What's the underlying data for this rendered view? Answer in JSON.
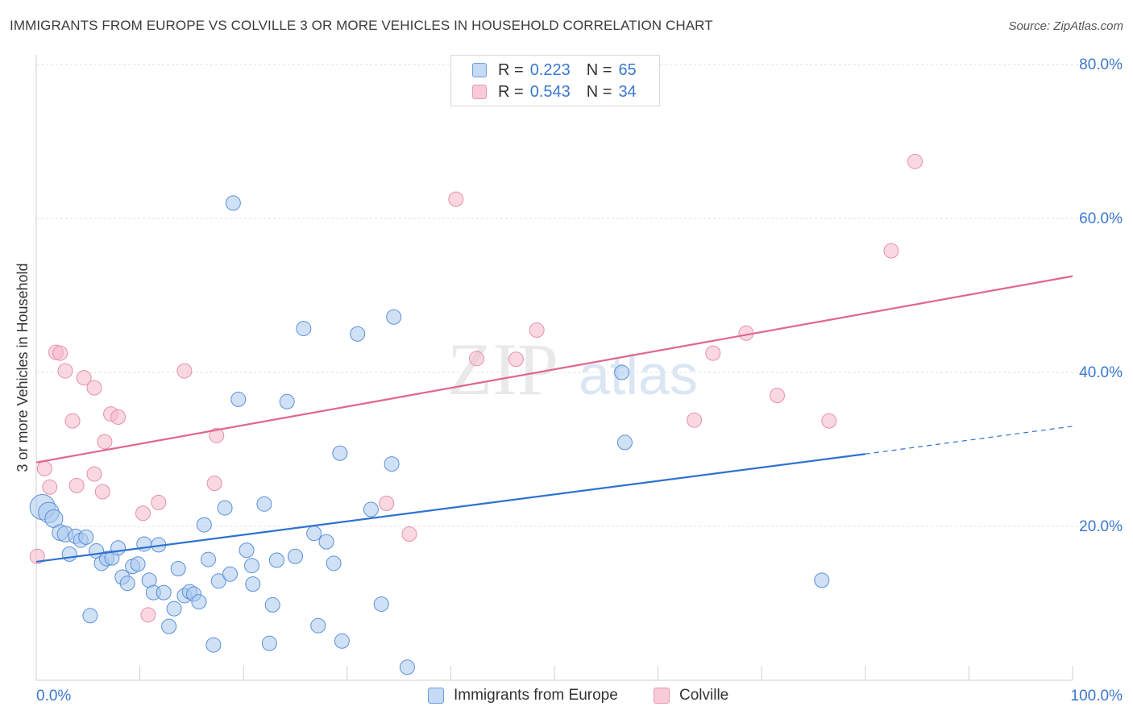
{
  "header": {
    "title": "IMMIGRANTS FROM EUROPE VS COLVILLE 3 OR MORE VEHICLES IN HOUSEHOLD CORRELATION CHART",
    "source": "Source: ZipAtlas.com"
  },
  "legend": {
    "rows": [
      {
        "r_label": "R =",
        "r_value": "0.223",
        "n_label": "N =",
        "n_value": "65"
      },
      {
        "r_label": "R =",
        "r_value": "0.543",
        "n_label": "N =",
        "n_value": "34"
      }
    ]
  },
  "watermark": {
    "zip": "ZIP",
    "atlas": "atlas"
  },
  "colors": {
    "europe_fill": "#aac8ef",
    "europe_stroke": "#5a90d8",
    "europe_line": "#2f72d0",
    "colville_fill": "#f5b8c8",
    "colville_stroke": "#e690a8",
    "colville_line": "#e0668c",
    "axis_label": "#3a78d0",
    "grid": "#e0e0e0"
  },
  "chart_data": {
    "type": "scatter",
    "title": "IMMIGRANTS FROM EUROPE VS COLVILLE 3 OR MORE VEHICLES IN HOUSEHOLD CORRELATION CHART",
    "xlabel": "",
    "ylabel": "3 or more Vehicles in Household",
    "xlim": [
      0,
      100
    ],
    "ylim": [
      0,
      80
    ],
    "x_tick_labels": [
      {
        "value": 0,
        "label": "0.0%"
      },
      {
        "value": 100,
        "label": "100.0%"
      }
    ],
    "y_tick_labels": [
      {
        "value": 20,
        "label": "20.0%"
      },
      {
        "value": 40,
        "label": "40.0%"
      },
      {
        "value": 60,
        "label": "60.0%"
      },
      {
        "value": 80,
        "label": "80.0%"
      }
    ],
    "series": [
      {
        "name": "Immigrants from Europe",
        "color": "#aac8ef",
        "r": 0.223,
        "n": 65,
        "trend": {
          "x0": 0,
          "y0": 15.4,
          "x1": 80,
          "y1": 29.4,
          "dash_to_x": 100,
          "dash_to_y": 33.0
        },
        "points": [
          {
            "x": 0.6,
            "y": 22.5,
            "s": 3
          },
          {
            "x": 1.2,
            "y": 21.8,
            "s": 2
          },
          {
            "x": 1.7,
            "y": 21.0,
            "s": 1.5
          },
          {
            "x": 2.3,
            "y": 19.2,
            "s": 1.2
          },
          {
            "x": 2.8,
            "y": 19.0,
            "s": 1.2
          },
          {
            "x": 3.2,
            "y": 16.4,
            "s": 1
          },
          {
            "x": 3.8,
            "y": 18.7,
            "s": 1
          },
          {
            "x": 4.3,
            "y": 18.2,
            "s": 1
          },
          {
            "x": 4.8,
            "y": 18.6,
            "s": 1
          },
          {
            "x": 5.2,
            "y": 8.4,
            "s": 1
          },
          {
            "x": 5.8,
            "y": 16.8,
            "s": 1
          },
          {
            "x": 6.3,
            "y": 15.2,
            "s": 1
          },
          {
            "x": 6.8,
            "y": 15.8,
            "s": 1
          },
          {
            "x": 7.3,
            "y": 15.9,
            "s": 1
          },
          {
            "x": 7.9,
            "y": 17.2,
            "s": 1
          },
          {
            "x": 8.3,
            "y": 13.4,
            "s": 1
          },
          {
            "x": 8.8,
            "y": 12.6,
            "s": 1
          },
          {
            "x": 9.3,
            "y": 14.8,
            "s": 1
          },
          {
            "x": 9.8,
            "y": 15.1,
            "s": 1
          },
          {
            "x": 10.4,
            "y": 17.7,
            "s": 1
          },
          {
            "x": 10.9,
            "y": 13.0,
            "s": 1
          },
          {
            "x": 11.3,
            "y": 11.4,
            "s": 1
          },
          {
            "x": 11.8,
            "y": 17.6,
            "s": 1
          },
          {
            "x": 12.3,
            "y": 11.4,
            "s": 1
          },
          {
            "x": 12.8,
            "y": 7.0,
            "s": 1
          },
          {
            "x": 13.3,
            "y": 9.3,
            "s": 1
          },
          {
            "x": 13.7,
            "y": 14.5,
            "s": 1
          },
          {
            "x": 14.3,
            "y": 11.0,
            "s": 1
          },
          {
            "x": 14.8,
            "y": 11.5,
            "s": 1
          },
          {
            "x": 15.2,
            "y": 11.2,
            "s": 1
          },
          {
            "x": 15.7,
            "y": 10.2,
            "s": 1
          },
          {
            "x": 16.2,
            "y": 20.2,
            "s": 1
          },
          {
            "x": 16.6,
            "y": 15.7,
            "s": 1
          },
          {
            "x": 17.1,
            "y": 4.6,
            "s": 1
          },
          {
            "x": 17.6,
            "y": 12.9,
            "s": 1
          },
          {
            "x": 18.2,
            "y": 22.4,
            "s": 1
          },
          {
            "x": 18.7,
            "y": 13.8,
            "s": 1
          },
          {
            "x": 19.0,
            "y": 62.0,
            "s": 1
          },
          {
            "x": 19.5,
            "y": 36.5,
            "s": 1
          },
          {
            "x": 20.3,
            "y": 16.9,
            "s": 1
          },
          {
            "x": 20.8,
            "y": 14.9,
            "s": 1
          },
          {
            "x": 20.9,
            "y": 12.5,
            "s": 1
          },
          {
            "x": 22.0,
            "y": 22.9,
            "s": 1
          },
          {
            "x": 22.5,
            "y": 4.8,
            "s": 1
          },
          {
            "x": 22.8,
            "y": 9.8,
            "s": 1
          },
          {
            "x": 23.2,
            "y": 15.6,
            "s": 1
          },
          {
            "x": 24.2,
            "y": 36.2,
            "s": 1
          },
          {
            "x": 25.0,
            "y": 16.1,
            "s": 1
          },
          {
            "x": 25.8,
            "y": 45.7,
            "s": 1
          },
          {
            "x": 26.8,
            "y": 19.1,
            "s": 1
          },
          {
            "x": 27.2,
            "y": 7.1,
            "s": 1
          },
          {
            "x": 28.0,
            "y": 18.0,
            "s": 1
          },
          {
            "x": 28.7,
            "y": 15.2,
            "s": 1
          },
          {
            "x": 29.3,
            "y": 29.5,
            "s": 1
          },
          {
            "x": 29.5,
            "y": 5.1,
            "s": 1
          },
          {
            "x": 31.0,
            "y": 45.0,
            "s": 1
          },
          {
            "x": 32.3,
            "y": 22.2,
            "s": 1
          },
          {
            "x": 33.3,
            "y": 9.9,
            "s": 1
          },
          {
            "x": 34.3,
            "y": 28.1,
            "s": 1
          },
          {
            "x": 34.5,
            "y": 47.2,
            "s": 1
          },
          {
            "x": 35.8,
            "y": 1.7,
            "s": 1
          },
          {
            "x": 56.5,
            "y": 40.0,
            "s": 1
          },
          {
            "x": 56.8,
            "y": 30.9,
            "s": 1
          },
          {
            "x": 75.8,
            "y": 13.0,
            "s": 1
          },
          {
            "x": 76.5,
            "y": 13.0,
            "s": 0.01
          }
        ]
      },
      {
        "name": "Colville",
        "color": "#f5b8c8",
        "r": 0.543,
        "n": 34,
        "trend": {
          "x0": 0,
          "y0": 28.3,
          "x1": 100,
          "y1": 52.5
        },
        "points": [
          {
            "x": 0.1,
            "y": 16.1,
            "s": 1
          },
          {
            "x": 0.8,
            "y": 27.5,
            "s": 1
          },
          {
            "x": 1.3,
            "y": 25.1,
            "s": 1
          },
          {
            "x": 1.9,
            "y": 42.6,
            "s": 1
          },
          {
            "x": 2.3,
            "y": 42.5,
            "s": 1
          },
          {
            "x": 2.8,
            "y": 40.2,
            "s": 1
          },
          {
            "x": 3.5,
            "y": 33.7,
            "s": 1
          },
          {
            "x": 3.9,
            "y": 25.3,
            "s": 1
          },
          {
            "x": 4.6,
            "y": 39.3,
            "s": 1
          },
          {
            "x": 5.6,
            "y": 38.0,
            "s": 1
          },
          {
            "x": 5.6,
            "y": 26.8,
            "s": 1
          },
          {
            "x": 6.4,
            "y": 24.5,
            "s": 1
          },
          {
            "x": 6.6,
            "y": 31.0,
            "s": 1
          },
          {
            "x": 7.2,
            "y": 34.6,
            "s": 1
          },
          {
            "x": 7.9,
            "y": 34.2,
            "s": 1
          },
          {
            "x": 10.3,
            "y": 21.7,
            "s": 1
          },
          {
            "x": 10.8,
            "y": 8.5,
            "s": 1
          },
          {
            "x": 11.8,
            "y": 23.1,
            "s": 1
          },
          {
            "x": 14.3,
            "y": 40.2,
            "s": 1
          },
          {
            "x": 17.2,
            "y": 25.6,
            "s": 1
          },
          {
            "x": 17.4,
            "y": 31.8,
            "s": 1
          },
          {
            "x": 33.8,
            "y": 23.0,
            "s": 1
          },
          {
            "x": 36.0,
            "y": 19.0,
            "s": 1
          },
          {
            "x": 40.5,
            "y": 62.5,
            "s": 1
          },
          {
            "x": 42.5,
            "y": 41.8,
            "s": 1
          },
          {
            "x": 46.3,
            "y": 41.7,
            "s": 1
          },
          {
            "x": 48.3,
            "y": 45.5,
            "s": 1
          },
          {
            "x": 63.5,
            "y": 33.8,
            "s": 1
          },
          {
            "x": 65.3,
            "y": 42.5,
            "s": 1
          },
          {
            "x": 68.5,
            "y": 45.1,
            "s": 1
          },
          {
            "x": 71.5,
            "y": 37.0,
            "s": 1
          },
          {
            "x": 76.5,
            "y": 33.7,
            "s": 1
          },
          {
            "x": 82.5,
            "y": 55.8,
            "s": 1
          },
          {
            "x": 84.8,
            "y": 67.4,
            "s": 1
          }
        ]
      }
    ]
  }
}
